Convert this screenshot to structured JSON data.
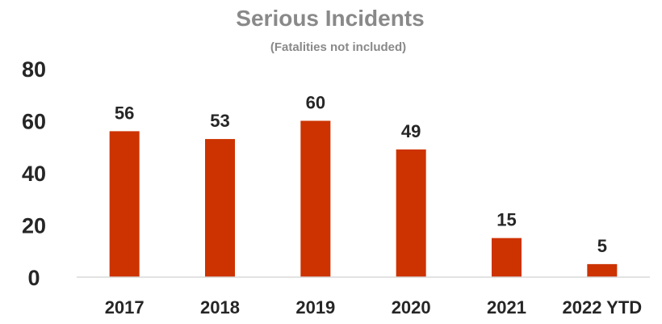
{
  "chart_data": {
    "type": "bar",
    "title": "Serious Incidents",
    "subtitle": "(Fatalities not included)",
    "categories": [
      "2017",
      "2018",
      "2019",
      "2020",
      "2021",
      "2022 YTD"
    ],
    "values": [
      56,
      53,
      60,
      49,
      15,
      5
    ],
    "ylim": [
      0,
      80
    ],
    "yticks": [
      0,
      20,
      40,
      60,
      80
    ],
    "grid": false,
    "legend": "none",
    "bar_color": "#CC3300",
    "data_labels": true
  }
}
